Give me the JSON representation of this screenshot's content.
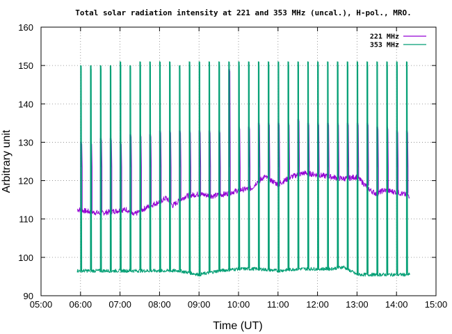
{
  "chart_data": {
    "type": "line",
    "title": "Total solar radiation intensity at 221 and 353 MHz (uncal.), H-pol., MRO.",
    "xlabel": "Time (UT)",
    "ylabel": "Arbitrary unit",
    "xlim": [
      "05:00",
      "15:00"
    ],
    "ylim": [
      90,
      160
    ],
    "x_ticks": [
      "05:00",
      "06:00",
      "07:00",
      "08:00",
      "09:00",
      "10:00",
      "11:00",
      "12:00",
      "13:00",
      "14:00",
      "15:00"
    ],
    "y_ticks": [
      90,
      100,
      110,
      120,
      130,
      140,
      150,
      160
    ],
    "grid": true,
    "legend_position": "top-right",
    "calibration_spike_times": [
      "06:00",
      "06:15",
      "06:30",
      "06:45",
      "07:00",
      "07:15",
      "07:30",
      "07:45",
      "08:00",
      "08:15",
      "08:30",
      "08:45",
      "09:00",
      "09:15",
      "09:30",
      "09:45",
      "10:00",
      "10:15",
      "10:30",
      "10:45",
      "11:00",
      "11:15",
      "11:30",
      "11:45",
      "12:00",
      "12:15",
      "12:30",
      "12:45",
      "13:00",
      "13:15",
      "13:30",
      "13:45",
      "14:00",
      "14:15"
    ],
    "series": [
      {
        "name": "221 MHz",
        "color": "#9400d3",
        "spike_low": 123.5,
        "spike_highs": [
          130,
          130,
          131,
          131,
          130,
          132,
          132,
          132,
          133,
          133,
          133,
          133,
          133,
          133,
          133,
          149,
          134,
          134,
          135,
          135,
          135,
          135,
          136,
          135,
          135,
          135,
          135,
          135,
          135,
          135,
          134,
          134,
          133,
          133
        ],
        "baseline": {
          "x": [
            "05:55",
            "06:10",
            "06:30",
            "06:50",
            "07:10",
            "07:20",
            "07:40",
            "08:00",
            "08:10",
            "08:20",
            "08:40",
            "09:00",
            "09:20",
            "09:40",
            "10:00",
            "10:20",
            "10:30",
            "10:40",
            "11:00",
            "11:20",
            "11:40",
            "12:00",
            "12:20",
            "12:40",
            "13:00",
            "13:20",
            "13:30",
            "13:40",
            "14:00",
            "14:20"
          ],
          "y": [
            112.5,
            112,
            111.5,
            112,
            112.5,
            111,
            113,
            114.5,
            115.5,
            113.5,
            116,
            116.5,
            116,
            116.5,
            117.5,
            118,
            120,
            121,
            119,
            121,
            122,
            121.5,
            121,
            120.5,
            121,
            117.5,
            116.5,
            117.5,
            117,
            116
          ]
        }
      },
      {
        "name": "353 MHz",
        "color": "#009e73",
        "spike_highs": [
          150,
          150,
          150,
          150,
          151,
          150,
          151,
          151,
          151,
          151,
          150,
          151,
          151,
          151,
          151,
          151,
          151,
          151,
          151,
          151,
          151,
          151,
          151,
          151,
          151,
          151,
          151,
          151,
          151,
          151,
          151,
          151,
          151,
          151
        ],
        "baseline": {
          "x": [
            "05:55",
            "06:30",
            "07:00",
            "07:30",
            "08:00",
            "08:30",
            "09:00",
            "09:30",
            "10:00",
            "10:30",
            "11:00",
            "11:30",
            "12:00",
            "12:20",
            "12:40",
            "12:50",
            "13:00",
            "13:30",
            "14:00",
            "14:20"
          ],
          "y": [
            96.5,
            96.5,
            96.5,
            96.5,
            96.5,
            96.5,
            95.5,
            96.5,
            97,
            97,
            96.5,
            97,
            97,
            97,
            97.5,
            96.5,
            95.5,
            95.5,
            95.5,
            95.5
          ]
        }
      }
    ]
  }
}
